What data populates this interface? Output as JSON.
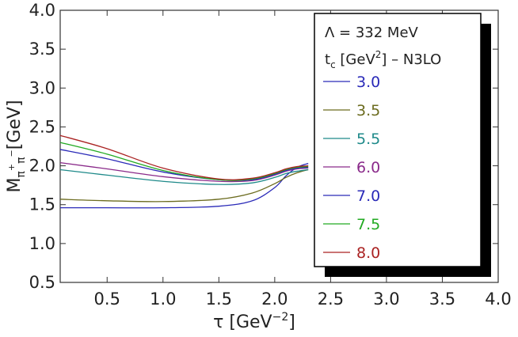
{
  "chart_data": {
    "type": "line",
    "title": "",
    "xlabel": "τ [GeV",
    "xlabel_sup": "−2",
    "xlabel_end": "]",
    "ylabel_main": "M",
    "ylabel_sub": "π",
    "ylabel_sup1": "+",
    "ylabel_sup2": "−",
    "ylabel_end": "[GeV]",
    "xlim": [
      0.08,
      4.0
    ],
    "ylim": [
      0.5,
      4.0
    ],
    "xticks": [
      "0.5",
      "1.0",
      "1.5",
      "2.0",
      "2.5",
      "3.0",
      "3.5",
      "4.0"
    ],
    "yticks": [
      "0.5",
      "1.0",
      "1.5",
      "2.0",
      "2.5",
      "3.0",
      "3.5",
      "4.0"
    ],
    "xtick_values": [
      0.5,
      1.0,
      1.5,
      2.0,
      2.5,
      3.0,
      3.5,
      4.0
    ],
    "ytick_values": [
      0.5,
      1.0,
      1.5,
      2.0,
      2.5,
      3.0,
      3.5,
      4.0
    ],
    "legend": {
      "placement": "top-right",
      "header1": "Λ = 332 MeV",
      "header2_main": "t",
      "header2_sub": "c",
      "header2_rest": " [GeV",
      "header2_sup": "2",
      "header2_end": "] – N3LO"
    },
    "series": [
      {
        "name": "3.0",
        "color": "#2a2ab8",
        "x": [
          0.08,
          0.5,
          1.0,
          1.5,
          1.8,
          2.0,
          2.1,
          2.2,
          2.3
        ],
        "y": [
          1.46,
          1.46,
          1.46,
          1.48,
          1.55,
          1.72,
          1.87,
          1.98,
          2.03
        ]
      },
      {
        "name": "3.5",
        "color": "#6b6b1e",
        "x": [
          0.08,
          0.5,
          1.0,
          1.5,
          1.8,
          2.0,
          2.1,
          2.2,
          2.3
        ],
        "y": [
          1.57,
          1.55,
          1.54,
          1.57,
          1.65,
          1.77,
          1.85,
          1.91,
          1.95
        ]
      },
      {
        "name": "5.5",
        "color": "#1f8a8a",
        "x": [
          0.08,
          0.5,
          1.0,
          1.5,
          1.8,
          2.0,
          2.1,
          2.2,
          2.3
        ],
        "y": [
          1.95,
          1.88,
          1.8,
          1.76,
          1.78,
          1.85,
          1.9,
          1.93,
          1.95
        ]
      },
      {
        "name": "6.0",
        "color": "#8a2a8a",
        "x": [
          0.08,
          0.5,
          1.0,
          1.5,
          1.8,
          2.0,
          2.1,
          2.2,
          2.3
        ],
        "y": [
          2.04,
          1.96,
          1.86,
          1.8,
          1.81,
          1.88,
          1.93,
          1.96,
          1.97
        ]
      },
      {
        "name": "7.0",
        "color": "#2a2ab8",
        "x": [
          0.08,
          0.5,
          1.0,
          1.5,
          1.8,
          2.0,
          2.1,
          2.2,
          2.3
        ],
        "y": [
          2.21,
          2.09,
          1.92,
          1.82,
          1.82,
          1.89,
          1.94,
          1.97,
          1.98
        ]
      },
      {
        "name": "7.5",
        "color": "#22aa22",
        "x": [
          0.08,
          0.5,
          1.0,
          1.5,
          1.8,
          2.0,
          2.1,
          2.2,
          2.3
        ],
        "y": [
          2.3,
          2.15,
          1.94,
          1.82,
          1.83,
          1.9,
          1.95,
          1.98,
          1.99
        ]
      },
      {
        "name": "8.0",
        "color": "#aa2222",
        "x": [
          0.08,
          0.5,
          1.0,
          1.5,
          1.8,
          2.0,
          2.1,
          2.2,
          2.3
        ],
        "y": [
          2.39,
          2.22,
          1.97,
          1.83,
          1.84,
          1.91,
          1.96,
          1.99,
          2.0
        ]
      }
    ]
  }
}
